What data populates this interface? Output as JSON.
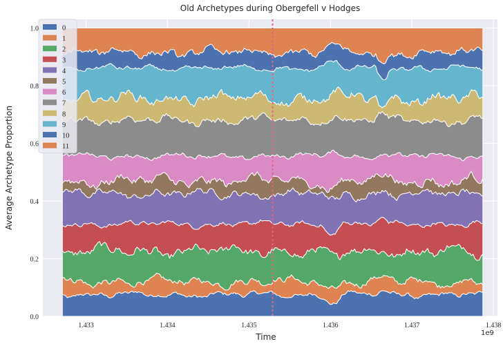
{
  "chart_data": {
    "type": "area",
    "stacked": true,
    "title": "Old Archetypes during Obergefell v Hodges",
    "xlabel": "Time",
    "ylabel": "Average Archetype Proportion",
    "x_offset_label": "1e9",
    "xlim": [
      1.43247,
      1.43805
    ],
    "ylim": [
      0,
      1.03
    ],
    "x_range": [
      1.43271,
      1.43787
    ],
    "x_ticks": [
      1.433,
      1.434,
      1.435,
      1.436,
      1.437,
      1.438
    ],
    "x_tick_labels": [
      "1.433",
      "1.434",
      "1.435",
      "1.436",
      "1.437",
      "1.438"
    ],
    "y_ticks": [
      0.0,
      0.2,
      0.4,
      0.6,
      0.8,
      1.0
    ],
    "y_tick_labels": [
      "0.0",
      "0.2",
      "0.4",
      "0.6",
      "0.8",
      "1.0"
    ],
    "event_line_x": 1.43529,
    "grid": true,
    "legend_position": "top-left",
    "series": [
      {
        "name": "0",
        "mean_boundary": 0.075,
        "color": "#4c72b0"
      },
      {
        "name": "1",
        "mean_boundary": 0.12,
        "color": "#dd8452"
      },
      {
        "name": "2",
        "mean_boundary": 0.225,
        "color": "#55a868"
      },
      {
        "name": "3",
        "mean_boundary": 0.32,
        "color": "#c44e52"
      },
      {
        "name": "4",
        "mean_boundary": 0.425,
        "color": "#8172b3"
      },
      {
        "name": "5",
        "mean_boundary": 0.47,
        "color": "#937860"
      },
      {
        "name": "6",
        "mean_boundary": 0.555,
        "color": "#da8bc3"
      },
      {
        "name": "7",
        "mean_boundary": 0.68,
        "color": "#8c8c8c"
      },
      {
        "name": "8",
        "mean_boundary": 0.755,
        "color": "#ccb974"
      },
      {
        "name": "9",
        "mean_boundary": 0.86,
        "color": "#64b5cd"
      },
      {
        "name": "10",
        "mean_boundary": 0.915,
        "color": "#4c72b0"
      },
      {
        "name": "11",
        "mean_boundary": 1.0,
        "color": "#dd8452"
      }
    ],
    "colors": {
      "plot_background": "#eaeaf2",
      "grid": "#ffffff",
      "event_line": "#e5657e",
      "legend_background": "#eaeaf2"
    }
  }
}
